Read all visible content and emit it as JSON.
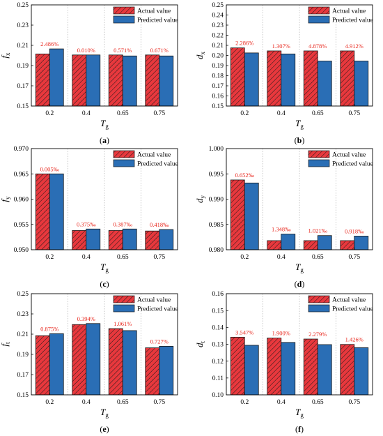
{
  "colors": {
    "actual_fill": "#e8383d",
    "predicted_fill": "#2a6eb5",
    "annotation": "#e8261c",
    "axis": "#000000",
    "grid": "#b8b8b8"
  },
  "chart_data": [
    {
      "type": "bar",
      "panel_label": "(a)",
      "xlabel": "T",
      "xlabel_sub": "g",
      "ylabel": "f",
      "ylabel_sub": "x",
      "categories": [
        "0.2",
        "0.4",
        "0.65",
        "0.75"
      ],
      "ylim": [
        0.15,
        0.25
      ],
      "yticks": [
        "0.15",
        "0.17",
        "0.19",
        "0.21",
        "0.23",
        "0.25"
      ],
      "series": [
        {
          "name": "Actual value",
          "values": [
            0.2015,
            0.2005,
            0.2005,
            0.2005
          ]
        },
        {
          "name": "Predicted value",
          "values": [
            0.2065,
            0.2005,
            0.1995,
            0.1995
          ]
        }
      ],
      "annotations": [
        "2.486%",
        "0.010%",
        "0.571%",
        "0.671%"
      ],
      "grid": "vertical dotted",
      "legend": "top-right"
    },
    {
      "type": "bar",
      "panel_label": "(b)",
      "xlabel": "T",
      "xlabel_sub": "g",
      "ylabel": "d",
      "ylabel_sub": "x",
      "categories": [
        "0.2",
        "0.4",
        "0.65",
        "0.75"
      ],
      "ylim": [
        0.15,
        0.25
      ],
      "yticks": [
        "0.15",
        "0.16",
        "0.17",
        "0.18",
        "0.19",
        "0.20",
        "0.21",
        "0.22",
        "0.23",
        "0.24",
        "0.25"
      ],
      "series": [
        {
          "name": "Actual value",
          "values": [
            0.2075,
            0.2045,
            0.2045,
            0.2045
          ]
        },
        {
          "name": "Predicted value",
          "values": [
            0.2025,
            0.2015,
            0.1945,
            0.1945
          ]
        }
      ],
      "annotations": [
        "2.286%",
        "1.307%",
        "4.878%",
        "4.912%"
      ],
      "grid": "vertical dotted",
      "legend": "top-right"
    },
    {
      "type": "bar",
      "panel_label": "(c)",
      "xlabel": "T",
      "xlabel_sub": "g",
      "ylabel": "f",
      "ylabel_sub": "y",
      "categories": [
        "0.2",
        "0.4",
        "0.65",
        "0.75"
      ],
      "ylim": [
        0.95,
        0.97
      ],
      "yticks": [
        "0.950",
        "0.955",
        "0.960",
        "0.965",
        "0.970"
      ],
      "series": [
        {
          "name": "Actual value",
          "values": [
            0.965,
            0.9538,
            0.9538,
            0.9537
          ]
        },
        {
          "name": "Predicted value",
          "values": [
            0.965,
            0.9541,
            0.9541,
            0.954
          ]
        }
      ],
      "annotations": [
        "0.005‰",
        "0.375‰",
        "0.387‰",
        "0.418‰"
      ],
      "grid": "vertical dotted",
      "legend": "top-right"
    },
    {
      "type": "bar",
      "panel_label": "(d)",
      "xlabel": "T",
      "xlabel_sub": "g",
      "ylabel": "d",
      "ylabel_sub": "y",
      "categories": [
        "0.2",
        "0.4",
        "0.65",
        "0.75"
      ],
      "ylim": [
        0.98,
        1.0
      ],
      "yticks": [
        "0.980",
        "0.985",
        "0.990",
        "0.995",
        "1.000"
      ],
      "series": [
        {
          "name": "Actual value",
          "values": [
            0.9938,
            0.9818,
            0.9818,
            0.9818
          ]
        },
        {
          "name": "Predicted value",
          "values": [
            0.9932,
            0.9831,
            0.9828,
            0.9827
          ]
        }
      ],
      "annotations": [
        "0.652‰",
        "1.348‰",
        "1.021‰",
        "0.918‰"
      ],
      "grid": "vertical dotted",
      "legend": "top-right"
    },
    {
      "type": "bar",
      "panel_label": "(e)",
      "xlabel": "T",
      "xlabel_sub": "g",
      "ylabel": "f",
      "ylabel_sub": "t",
      "categories": [
        "0.2",
        "0.4",
        "0.65",
        "0.75"
      ],
      "ylim": [
        0.15,
        0.25
      ],
      "yticks": [
        "0.15",
        "0.17",
        "0.19",
        "0.21",
        "0.23",
        "0.25"
      ],
      "series": [
        {
          "name": "Actual value",
          "values": [
            0.2085,
            0.2195,
            0.2155,
            0.1965
          ]
        },
        {
          "name": "Predicted value",
          "values": [
            0.2105,
            0.2205,
            0.2135,
            0.198
          ]
        }
      ],
      "annotations": [
        "0.875%",
        "0.394%",
        "1.061%",
        "0.727%"
      ],
      "grid": "vertical dotted",
      "legend": "top-right"
    },
    {
      "type": "bar",
      "panel_label": "(f)",
      "xlabel": "T",
      "xlabel_sub": "g",
      "ylabel": "d",
      "ylabel_sub": "t",
      "categories": [
        "0.2",
        "0.4",
        "0.65",
        "0.75"
      ],
      "ylim": [
        0.1,
        0.16
      ],
      "yticks": [
        "0.10",
        "0.11",
        "0.12",
        "0.13",
        "0.14",
        "0.15",
        "0.16"
      ],
      "series": [
        {
          "name": "Actual value",
          "values": [
            0.1342,
            0.1337,
            0.1331,
            0.1299
          ]
        },
        {
          "name": "Predicted value",
          "values": [
            0.1294,
            0.1311,
            0.1298,
            0.128
          ]
        }
      ],
      "annotations": [
        "3.547%",
        "1.900%",
        "2.279%",
        "1.426%"
      ],
      "grid": "vertical dotted",
      "legend": "top-right"
    }
  ]
}
